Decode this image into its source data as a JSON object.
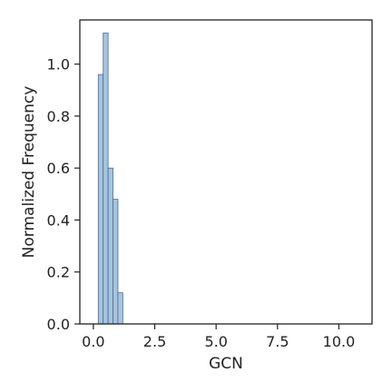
{
  "chart_data": {
    "type": "bar",
    "subtype": "histogram",
    "title": "",
    "xlabel": "GCN",
    "ylabel": "Normalized Frequency",
    "xlim": [
      -0.55,
      11.35
    ],
    "ylim": [
      0,
      1.17
    ],
    "xticks": [
      0.0,
      2.5,
      5.0,
      7.5,
      10.0
    ],
    "xtick_labels": [
      "0.0",
      "2.5",
      "5.0",
      "7.5",
      "10.0"
    ],
    "yticks": [
      0.0,
      0.2,
      0.4,
      0.6,
      0.8,
      1.0
    ],
    "ytick_labels": [
      "0.0",
      "0.2",
      "0.4",
      "0.6",
      "0.8",
      "1.0"
    ],
    "bins": [
      {
        "x0": 0.2,
        "x1": 0.4,
        "value": 0.96
      },
      {
        "x0": 0.4,
        "x1": 0.6,
        "value": 1.12
      },
      {
        "x0": 0.6,
        "x1": 0.8,
        "value": 0.6
      },
      {
        "x0": 0.8,
        "x1": 1.0,
        "value": 0.48
      },
      {
        "x0": 1.0,
        "x1": 1.2,
        "value": 0.12
      }
    ],
    "grid": false,
    "legend": "none",
    "colors": {
      "bar_fill": "#a7c3de",
      "bar_edge": "#4a6f91",
      "axis": "#222222"
    }
  }
}
